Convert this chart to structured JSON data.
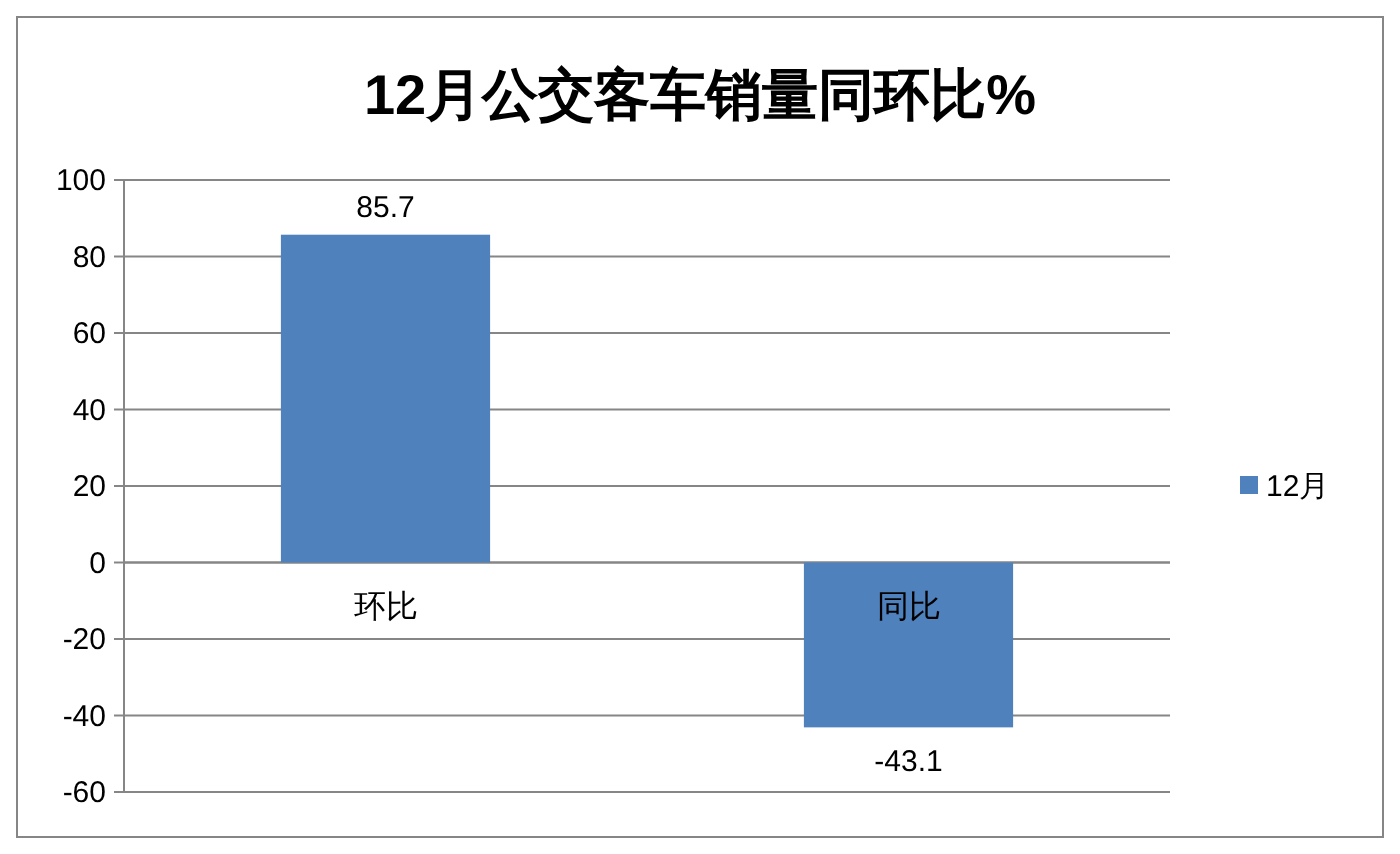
{
  "chart_data": {
    "type": "bar",
    "title": "12月公交客车销量同环比%",
    "categories": [
      "环比",
      "同比"
    ],
    "series": [
      {
        "name": "12月",
        "color": "#4f81bd",
        "values": [
          85.7,
          -43.1
        ]
      }
    ],
    "ylim": [
      -60,
      100
    ],
    "yticks": [
      -60,
      -40,
      -20,
      0,
      20,
      40,
      60,
      80,
      100
    ],
    "grid": "y",
    "legend": "right",
    "data_labels": true
  }
}
